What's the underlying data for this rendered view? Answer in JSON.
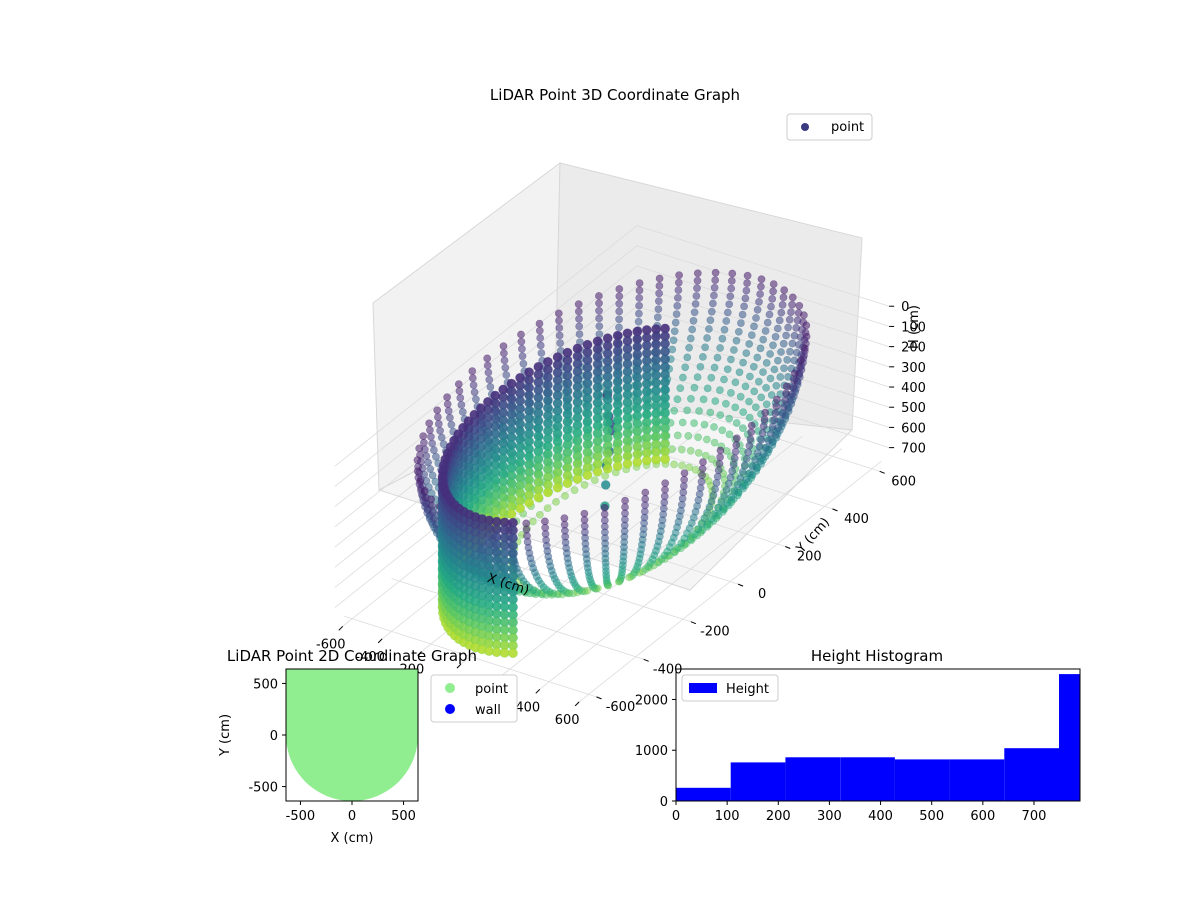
{
  "chart_data": [
    {
      "type": "scatter3d",
      "title": "LiDAR Point 3D Coordinate Graph",
      "xlabel": "X (cm)",
      "ylabel": "Y (cm)",
      "zlabel": "H (cm)",
      "xticks": [
        -600,
        -400,
        -200,
        0,
        200,
        400,
        600
      ],
      "yticks": [
        -600,
        -400,
        -200,
        0,
        200,
        400,
        600
      ],
      "zticks": [
        0,
        100,
        200,
        300,
        400,
        500,
        600,
        700
      ],
      "zlim": [
        780,
        0
      ],
      "colormap": "viridis",
      "legend": {
        "position": "upper-right",
        "entries": [
          {
            "name": "point",
            "color": "#3b3a80"
          }
        ]
      },
      "shape": {
        "description_free": true,
        "bowl_radius": 640,
        "front_wall_radius": 490,
        "front_wall_h_range": [
          120,
          780
        ],
        "inner_cluster": [
          [
            -60,
            30,
            90
          ],
          [
            -40,
            20,
            180
          ],
          [
            -20,
            10,
            200
          ],
          [
            0,
            0,
            220
          ],
          [
            10,
            -20,
            300
          ],
          [
            20,
            -40,
            350
          ],
          [
            40,
            -60,
            420
          ],
          [
            60,
            -80,
            500
          ]
        ]
      }
    },
    {
      "type": "scatter",
      "title": "LiDAR Point 2D Coordinate Graph",
      "xlabel": "X (cm)",
      "ylabel": "Y (cm)",
      "xticks": [
        -500,
        0,
        500
      ],
      "yticks": [
        -500,
        0,
        500
      ],
      "xlim": [
        -640,
        640
      ],
      "ylim": [
        -640,
        640
      ],
      "series": [
        {
          "name": "point",
          "color": "#90ee90"
        },
        {
          "name": "wall",
          "color": "#0000ff"
        }
      ],
      "legend": {
        "position": "outside-right"
      }
    },
    {
      "type": "bar",
      "title": "Height Histogram",
      "xticks": [
        0,
        100,
        200,
        300,
        400,
        500,
        600,
        700
      ],
      "yticks": [
        0,
        1000,
        2000
      ],
      "xlim": [
        0,
        790
      ],
      "ylim": [
        0,
        2600
      ],
      "color": "#0000ff",
      "legend": {
        "position": "upper-left",
        "entries": [
          {
            "name": "Height"
          }
        ]
      },
      "bins": [
        {
          "x0": 0,
          "x1": 107,
          "value": 260
        },
        {
          "x0": 107,
          "x1": 214,
          "value": 760
        },
        {
          "x0": 214,
          "x1": 321,
          "value": 860
        },
        {
          "x0": 321,
          "x1": 428,
          "value": 860
        },
        {
          "x0": 428,
          "x1": 535,
          "value": 820
        },
        {
          "x0": 535,
          "x1": 642,
          "value": 820
        },
        {
          "x0": 642,
          "x1": 749,
          "value": 1040
        },
        {
          "x0": 749,
          "x1": 790,
          "value": 2500
        }
      ]
    }
  ]
}
